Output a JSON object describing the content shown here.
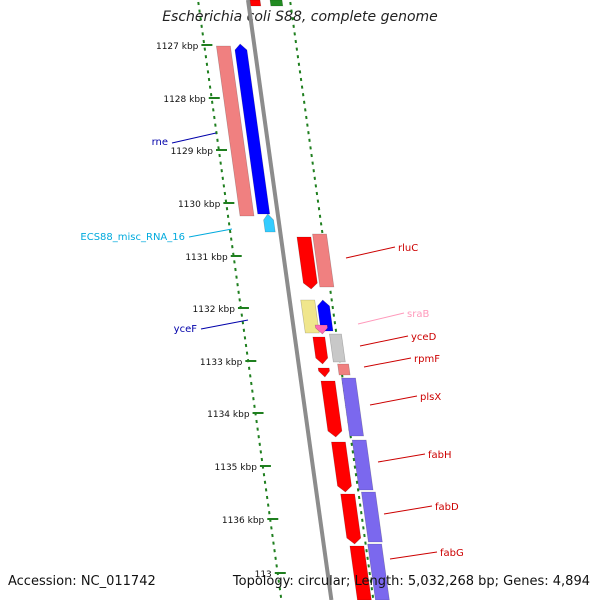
{
  "title": "Escherichia coli S88, complete genome",
  "accession": "Accession: NC_011742",
  "topology": "Topology: circular; Length: 5,032,268 bp; Genes: 4,894",
  "colors": {
    "tick": "#1f7f1f",
    "backbone": "#8c8c8c",
    "gene_red": "#ff0000",
    "gene_red_light": "#f08080",
    "gene_blue": "#0000ff",
    "gene_purple": "#7b68ee",
    "gene_cyan": "#33ccff",
    "gene_yellow": "#f0e68c",
    "gene_pink": "#ff69b4",
    "gene_gray": "#c8c8c8",
    "gene_green": "#228b22",
    "label_blue": "#0000aa",
    "label_cyan": "#00aadd",
    "label_red": "#cc0000",
    "label_pink": "#ff99bb"
  },
  "scale_labels": [
    "1127 kbp",
    "1128 kbp",
    "1129 kbp",
    "1130 kbp",
    "1131 kbp",
    "1132 kbp",
    "1133 kbp",
    "1134 kbp",
    "1135 kbp",
    "1136 kbp",
    "113"
  ],
  "gene_labels": [
    {
      "text": "rne",
      "color": "label_blue"
    },
    {
      "text": "ECS88_misc_RNA_16",
      "color": "label_cyan"
    },
    {
      "text": "yceF",
      "color": "label_blue"
    },
    {
      "text": "rluC",
      "color": "label_red"
    },
    {
      "text": "sraB",
      "color": "label_pink"
    },
    {
      "text": "yceD",
      "color": "label_red"
    },
    {
      "text": "rpmF",
      "color": "label_red"
    },
    {
      "text": "plsX",
      "color": "label_red"
    },
    {
      "text": "fabH",
      "color": "label_red"
    },
    {
      "text": "fabD",
      "color": "label_red"
    },
    {
      "text": "fabG",
      "color": "label_red"
    }
  ]
}
